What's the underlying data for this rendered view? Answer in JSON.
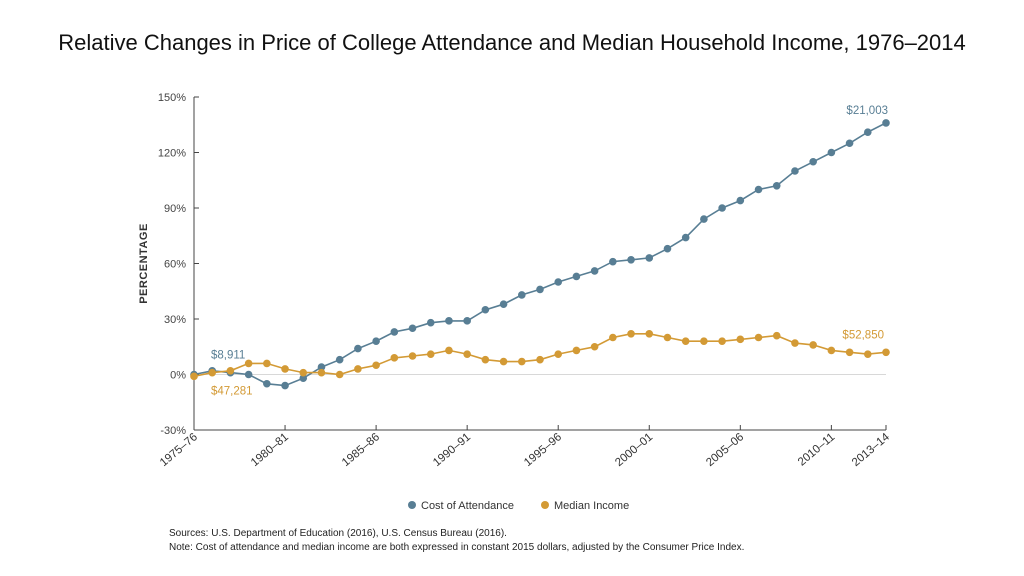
{
  "title": "Relative Changes in Price of College Attendance and Median Household Income, 1976–2014",
  "footer": {
    "sources": "Sources: U.S. Department of Education (2016), U.S. Census Bureau (2016).",
    "note": "Note: Cost of attendance and median income are both expressed in constant 2015 dollars, adjusted by the Consumer Price Index."
  },
  "colors": {
    "cost": "#587e94",
    "income": "#d39a35",
    "axis": "#444444",
    "zero": "#d8d8d8"
  },
  "chart_data": {
    "type": "line",
    "title": "Relative Changes in Price of College Attendance and Median Household Income, 1976–2014",
    "ylabel": "PERCENTAGE",
    "xlabel": "",
    "ylim": [
      -30,
      150
    ],
    "yticks": [
      -30,
      0,
      30,
      60,
      90,
      120,
      150
    ],
    "ytick_labels": [
      "-30%",
      "0%",
      "30%",
      "60%",
      "90%",
      "120%",
      "150%"
    ],
    "x": [
      1975,
      1976,
      1977,
      1978,
      1979,
      1980,
      1981,
      1982,
      1983,
      1984,
      1985,
      1986,
      1987,
      1988,
      1989,
      1990,
      1991,
      1992,
      1993,
      1994,
      1995,
      1996,
      1997,
      1998,
      1999,
      2000,
      2001,
      2002,
      2003,
      2004,
      2005,
      2006,
      2007,
      2008,
      2009,
      2010,
      2011,
      2012,
      2013
    ],
    "xticks": [
      1975,
      1980,
      1985,
      1990,
      1995,
      2000,
      2005,
      2010,
      2013
    ],
    "xtick_labels": [
      "1975–76",
      "1980–81",
      "1985–86",
      "1990–91",
      "1995–96",
      "2000–01",
      "2005–06",
      "2010–11",
      "2013–14"
    ],
    "series": [
      {
        "name": "Cost of Attendance",
        "key": "cost",
        "values": [
          0,
          2,
          1,
          0,
          -5,
          -6,
          -2,
          4,
          8,
          14,
          18,
          23,
          25,
          28,
          29,
          29,
          35,
          38,
          43,
          46,
          50,
          53,
          56,
          61,
          62,
          63,
          68,
          74,
          84,
          90,
          94,
          100,
          102,
          110,
          115,
          120,
          125,
          131,
          136
        ],
        "start_label": "$8,911",
        "end_label": "$21,003"
      },
      {
        "name": "Median Income",
        "key": "income",
        "values": [
          -1,
          1,
          2,
          6,
          6,
          3,
          1,
          1,
          0,
          3,
          5,
          9,
          10,
          11,
          13,
          11,
          8,
          7,
          7,
          8,
          11,
          13,
          15,
          20,
          22,
          22,
          20,
          18,
          18,
          18,
          19,
          20,
          21,
          17,
          16,
          13,
          12,
          11,
          12
        ],
        "start_label": "$47,281",
        "end_label": "$52,850"
      }
    ],
    "legend": [
      "Cost of Attendance",
      "Median Income"
    ],
    "legend_position": "bottom-center",
    "grid": false
  }
}
